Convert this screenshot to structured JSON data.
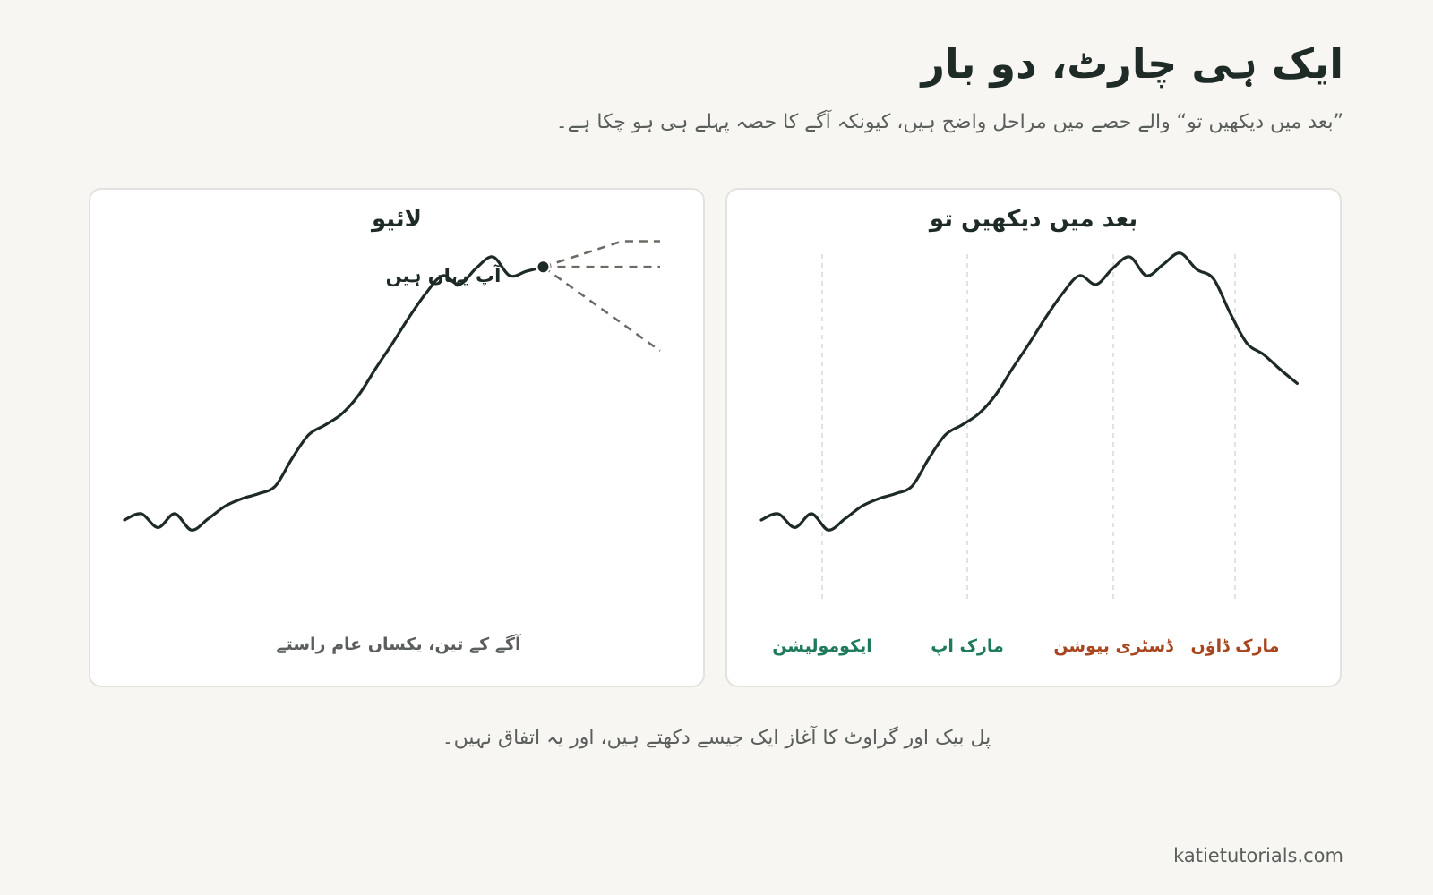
{
  "header": {
    "title": "ایک ہی چارٹ، دو بار",
    "subtitle": "”بعد میں دیکھیں تو“ والے حصے میں مراحل واضح ہیں، کیونکہ آگے کا حصہ پہلے ہی ہو چکا ہے۔"
  },
  "panels": {
    "live": {
      "title": "لائیو",
      "marker_label": "آپ یہاں ہیں",
      "caption": "آگے کے تین، یکساں عام راستے"
    },
    "hindsight": {
      "title": "بعد میں دیکھیں تو",
      "phases": [
        {
          "label": "ایکومولیشن",
          "color": "#1f7a5c"
        },
        {
          "label": "مارک اپ",
          "color": "#1f7a5c"
        },
        {
          "label": "ڈسٹری بیوشن",
          "color": "#a8461f"
        },
        {
          "label": "مارک ڈاؤن",
          "color": "#a8461f"
        }
      ]
    }
  },
  "footer": {
    "note": "پل بیک اور گراوٹ کا آغاز ایک جیسے دکھتے ہیں، اور یہ اتفاق نہیں۔",
    "site": "katietutorials.com"
  },
  "chart_data": [
    {
      "type": "line",
      "title": "لائیو",
      "series": [
        {
          "values": [
            30,
            40,
            18,
            40,
            14,
            32,
            52,
            64,
            72,
            84,
            128,
            166,
            182,
            200,
            230,
            272,
            312,
            354,
            392,
            420,
            406,
            432,
            450,
            420,
            427,
            434
          ]
        }
      ],
      "projections": [
        {
          "end_value": 475
        },
        {
          "end_value": 434
        },
        {
          "end_value": 300
        }
      ],
      "colors": {
        "line": "#1e2a25",
        "projection": "#6b6b66"
      }
    },
    {
      "type": "line",
      "title": "بعد میں دیکھیں تو",
      "series": [
        {
          "values": [
            30,
            40,
            18,
            40,
            14,
            32,
            52,
            64,
            72,
            84,
            128,
            166,
            182,
            200,
            230,
            272,
            312,
            354,
            392,
            420,
            406,
            432,
            450,
            420,
            438,
            456,
            430,
            415,
            360,
            312,
            294,
            270,
            248
          ]
        }
      ],
      "colors": {
        "line": "#1e2a25",
        "divider": "#d8d8d4"
      }
    }
  ]
}
